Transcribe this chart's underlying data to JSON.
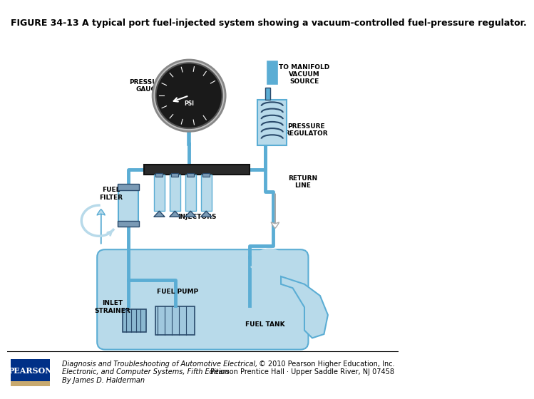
{
  "title": "FIGURE 34-13 A typical port fuel-injected system showing a vacuum-controlled fuel-pressure regulator.",
  "title_fontsize": 9,
  "footer_line1": "Diagnosis and Troubleshooting of Automotive Electrical,",
  "footer_line2": "Electronic, and Computer Systems, Fifth Edition",
  "footer_line3": "By James D. Halderman",
  "footer_right1": "© 2010 Pearson Higher Education, Inc.",
  "footer_right2": "Pearson Prentice Hall · Upper Saddle River, NJ 07458",
  "footer_fontsize": 7,
  "pearson_label": "PEARSON",
  "pearson_bg": "#003087",
  "pearson_accent": "#c8a96e",
  "bg_color": "#ffffff",
  "separator_color": "#000000",
  "line_color": "#5badd4",
  "dark_color": "#2a4a6b",
  "light_blue": "#b8daea",
  "mid_blue": "#5badd4",
  "gray": "#7a9ab5"
}
